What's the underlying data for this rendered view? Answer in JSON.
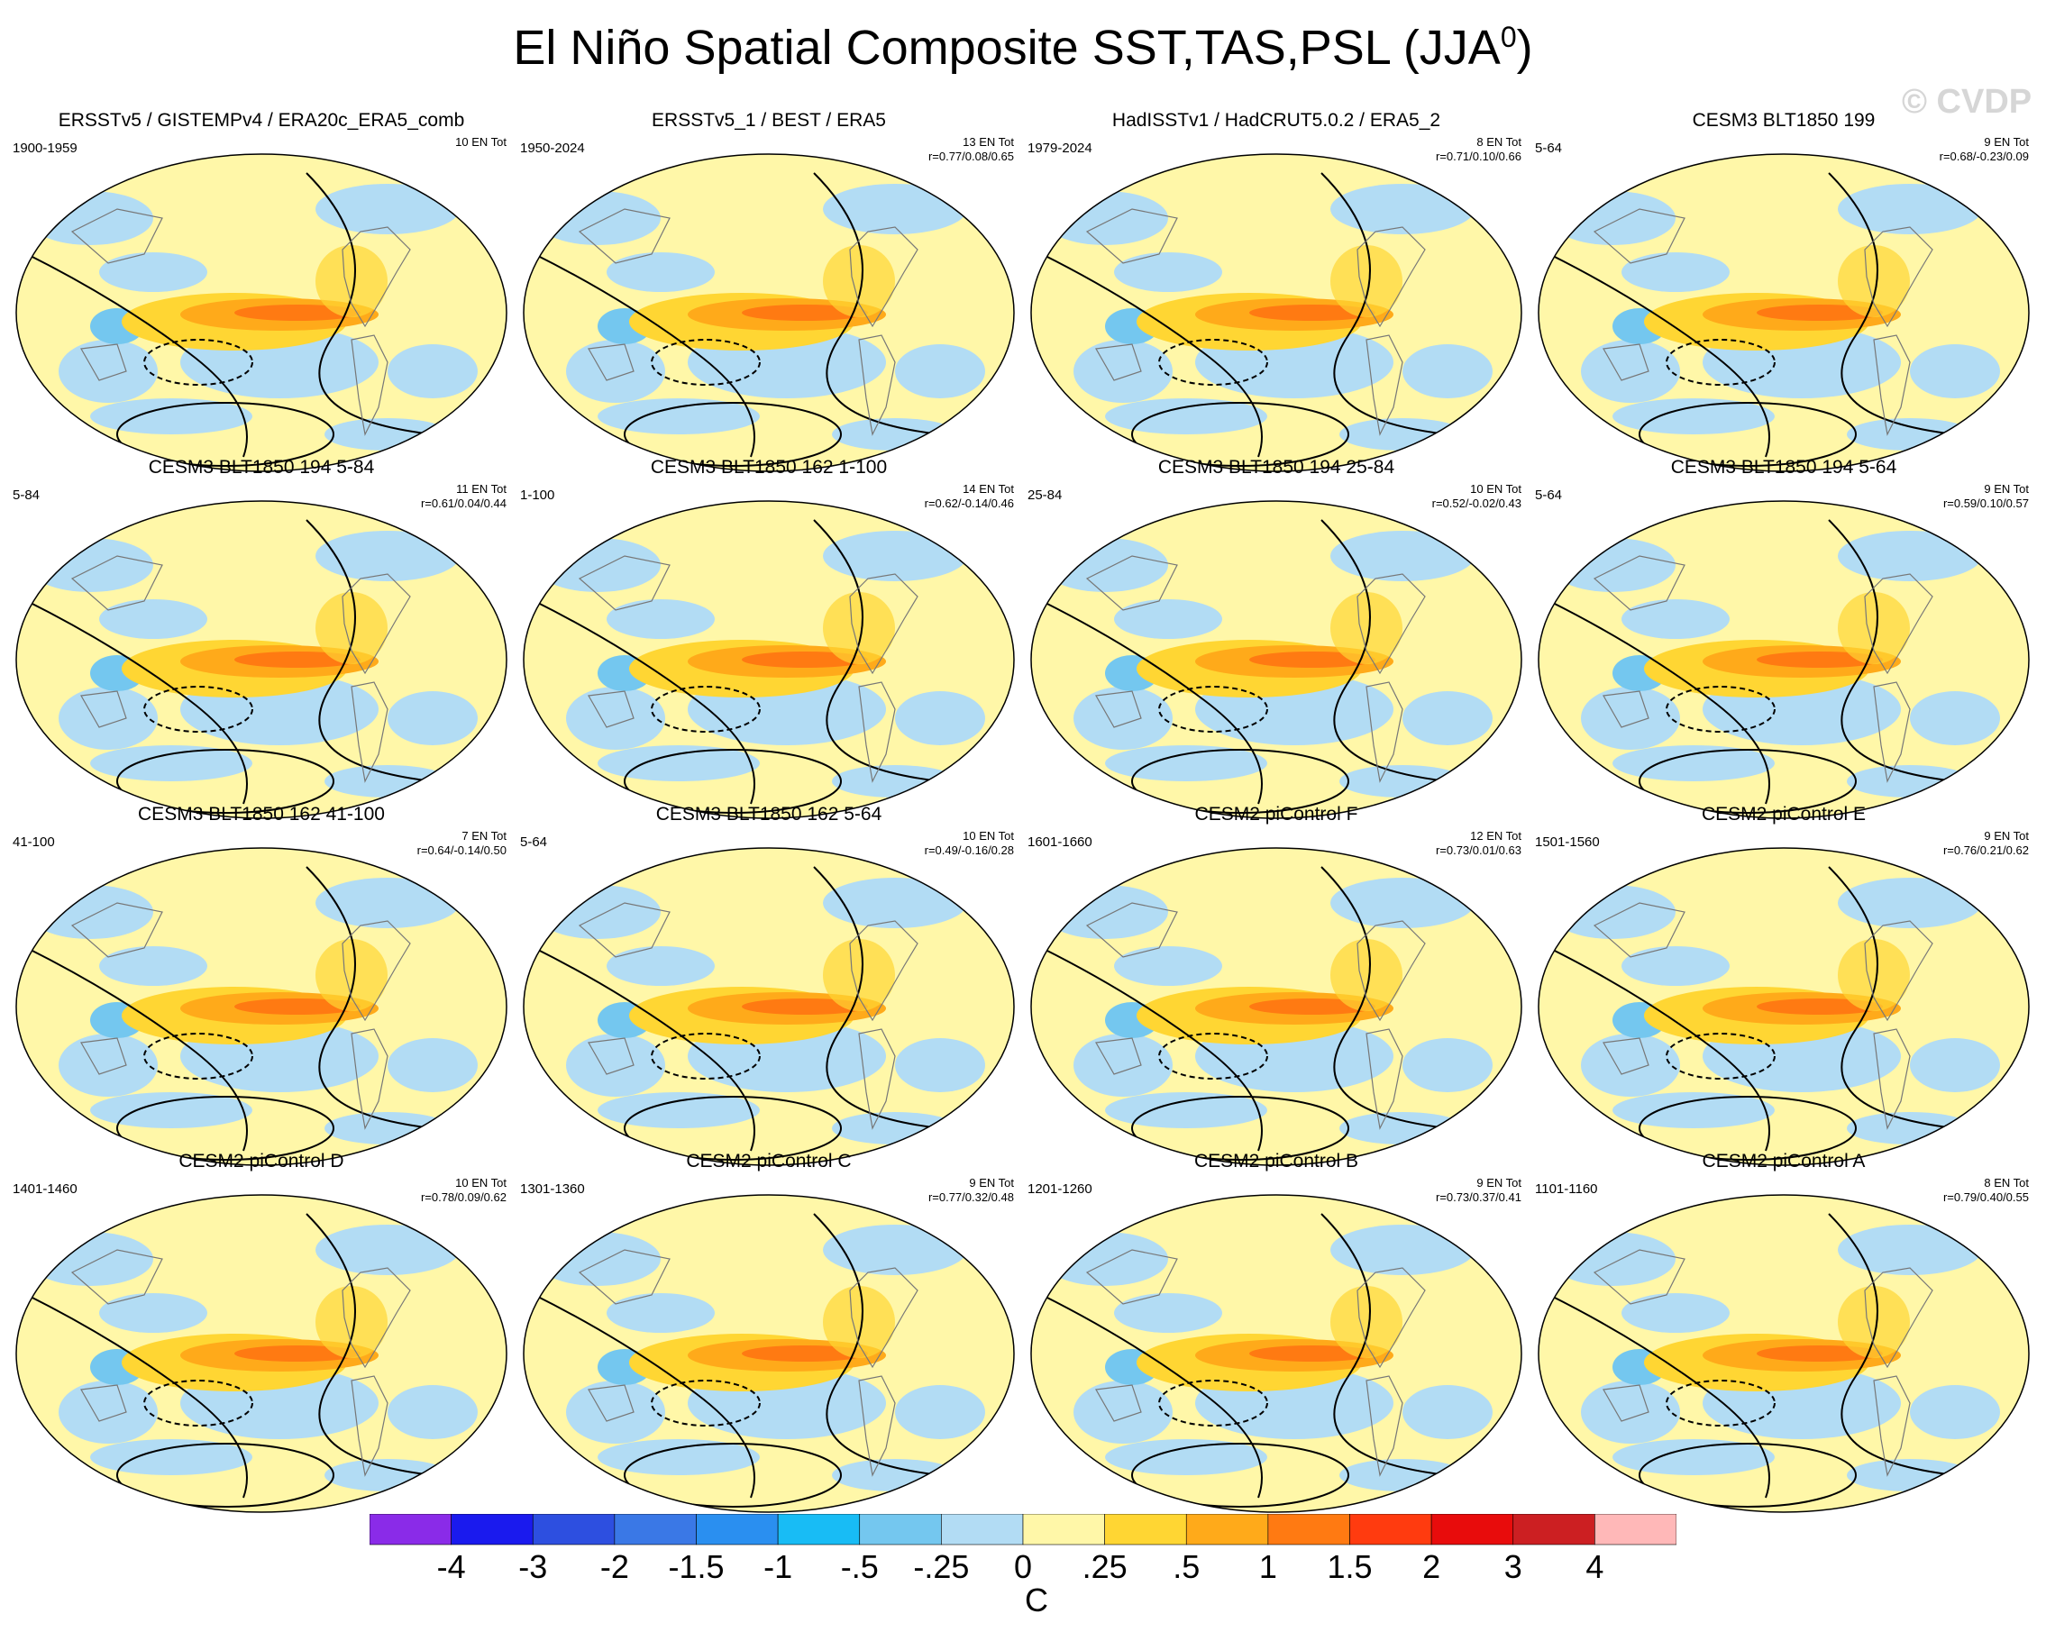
{
  "title_main": "El Niño Spatial Composite SST,TAS,PSL (JJA",
  "title_sup": "0",
  "title_close": ")",
  "watermark": "© CVDP",
  "panels": [
    {
      "title": "ERSSTv5 / GISTEMPv4 / ERA20c_ERA5_comb",
      "period": "1900-1959",
      "en_tot": "10 EN Tot",
      "r": ""
    },
    {
      "title": "ERSSTv5_1 / BEST / ERA5",
      "period": "1950-2024",
      "en_tot": "13 EN Tot",
      "r": "r=0.77/0.08/0.65"
    },
    {
      "title": "HadISSTv1 / HadCRUT5.0.2 / ERA5_2",
      "period": "1979-2024",
      "en_tot": "8 EN Tot",
      "r": "r=0.71/0.10/0.66"
    },
    {
      "title": "CESM3 BLT1850 199",
      "period": "5-64",
      "en_tot": "9 EN Tot",
      "r": "r=0.68/-0.23/0.09"
    },
    {
      "title": "CESM3 BLT1850 194 5-84",
      "period": "5-84",
      "en_tot": "11 EN Tot",
      "r": "r=0.61/0.04/0.44"
    },
    {
      "title": "CESM3 BLT1850 162 1-100",
      "period": "1-100",
      "en_tot": "14 EN Tot",
      "r": "r=0.62/-0.14/0.46"
    },
    {
      "title": "CESM3 BLT1850 194 25-84",
      "period": "25-84",
      "en_tot": "10 EN Tot",
      "r": "r=0.52/-0.02/0.43"
    },
    {
      "title": "CESM3 BLT1850 194 5-64",
      "period": "5-64",
      "en_tot": "9 EN Tot",
      "r": "r=0.59/0.10/0.57"
    },
    {
      "title": "CESM3 BLT1850 162 41-100",
      "period": "41-100",
      "en_tot": "7 EN Tot",
      "r": "r=0.64/-0.14/0.50"
    },
    {
      "title": "CESM3 BLT1850 162 5-64",
      "period": "5-64",
      "en_tot": "10 EN Tot",
      "r": "r=0.49/-0.16/0.28"
    },
    {
      "title": "CESM2 piControl F",
      "period": "1601-1660",
      "en_tot": "12 EN Tot",
      "r": "r=0.73/0.01/0.63"
    },
    {
      "title": "CESM2 piControl E",
      "period": "1501-1560",
      "en_tot": "9 EN Tot",
      "r": "r=0.76/0.21/0.62"
    },
    {
      "title": "CESM2 piControl D",
      "period": "1401-1460",
      "en_tot": "10 EN Tot",
      "r": "r=0.78/0.09/0.62"
    },
    {
      "title": "CESM2 piControl C",
      "period": "1301-1360",
      "en_tot": "9 EN Tot",
      "r": "r=0.77/0.32/0.48"
    },
    {
      "title": "CESM2 piControl B",
      "period": "1201-1260",
      "en_tot": "9 EN Tot",
      "r": "r=0.73/0.37/0.41"
    },
    {
      "title": "CESM2 piControl A",
      "period": "1101-1160",
      "en_tot": "8 EN Tot",
      "r": "r=0.79/0.40/0.55"
    }
  ],
  "colorbar": {
    "labels": [
      "-4",
      "-3",
      "-2",
      "-1.5",
      "-1",
      "-.5",
      "-.25",
      "0",
      ".25",
      ".5",
      "1",
      "1.5",
      "2",
      "3",
      "4"
    ],
    "colors": [
      "#8a2be8",
      "#1a1aee",
      "#2d4fe0",
      "#3a78e6",
      "#2a8ff0",
      "#18bcf5",
      "#74c7ef",
      "#b2dcf4",
      "#fff7a8",
      "#ffd633",
      "#ffaa1a",
      "#ff7a12",
      "#ff3b0f",
      "#e80c0c",
      "#cc1f22",
      "#ffb8b8"
    ],
    "units": "C"
  }
}
